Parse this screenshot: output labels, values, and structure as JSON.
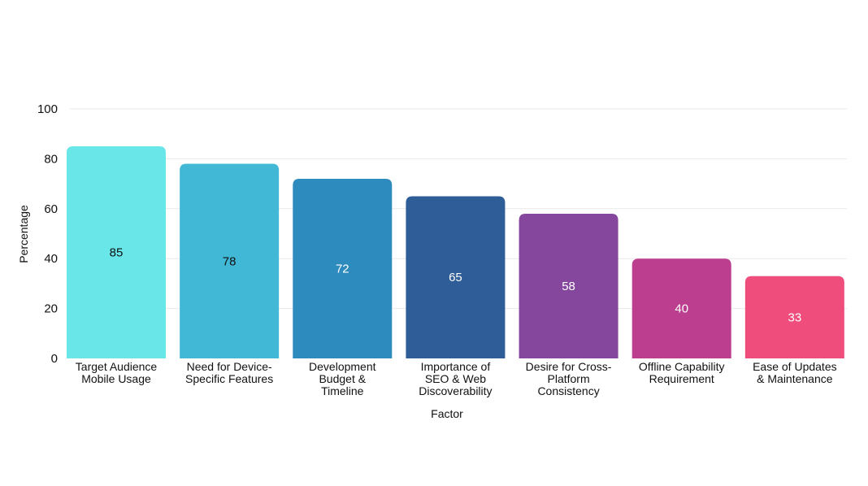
{
  "chart_data": {
    "type": "bar",
    "title": "",
    "xlabel": "Factor",
    "ylabel": "Percentage",
    "ylim": [
      0,
      100
    ],
    "yticks": [
      0,
      20,
      40,
      60,
      80,
      100
    ],
    "grid": true,
    "categories": [
      [
        "Target Audience",
        "Mobile Usage"
      ],
      [
        "Need for Device-",
        "Specific Features"
      ],
      [
        "Development",
        "Budget &",
        "Timeline"
      ],
      [
        "Importance of",
        "SEO & Web",
        "Discoverability"
      ],
      [
        "Desire for Cross-",
        "Platform",
        "Consistency"
      ],
      [
        "Offline Capability",
        "Requirement"
      ],
      [
        "Ease of Updates",
        "& Maintenance"
      ]
    ],
    "values": [
      85,
      78,
      72,
      65,
      58,
      40,
      33
    ],
    "colors": [
      "#68e6e8",
      "#41b8d6",
      "#2e8bbd",
      "#2e5d98",
      "#85469d",
      "#bb3e8f",
      "#ef4e7d"
    ],
    "label_colors": [
      "#111111",
      "#111111",
      "#ffffff",
      "#ffffff",
      "#ffffff",
      "#ffffff",
      "#ffffff"
    ]
  }
}
